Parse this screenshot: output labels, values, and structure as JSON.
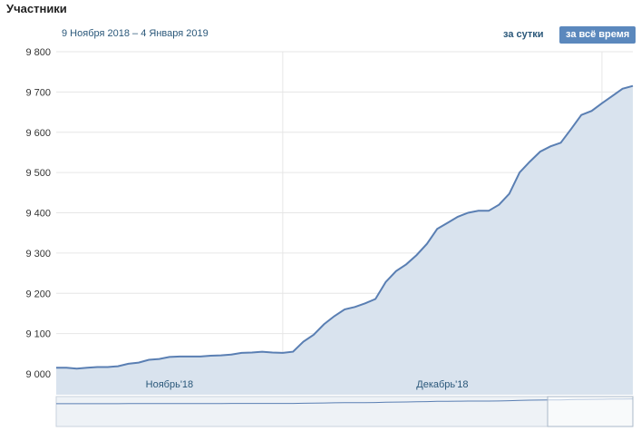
{
  "page": {
    "title": "Участники",
    "date_range": "9 Ноября 2018 – 4 Января 2019",
    "periods": {
      "day": "за сутки",
      "all": "за всё время"
    }
  },
  "colors": {
    "line": "#5a7fb3",
    "fill": "#d9e3ee",
    "grid": "#e6e6e6",
    "accent": "#5b88bd",
    "link": "#2b587a"
  },
  "chart_data": {
    "type": "area",
    "x": [
      "2018-11-09",
      "2018-11-10",
      "2018-11-11",
      "2018-11-12",
      "2018-11-13",
      "2018-11-14",
      "2018-11-15",
      "2018-11-16",
      "2018-11-17",
      "2018-11-18",
      "2018-11-19",
      "2018-11-20",
      "2018-11-21",
      "2018-11-22",
      "2018-11-23",
      "2018-11-24",
      "2018-11-25",
      "2018-11-26",
      "2018-11-27",
      "2018-11-28",
      "2018-11-29",
      "2018-11-30",
      "2018-12-01",
      "2018-12-02",
      "2018-12-03",
      "2018-12-04",
      "2018-12-05",
      "2018-12-06",
      "2018-12-07",
      "2018-12-08",
      "2018-12-09",
      "2018-12-10",
      "2018-12-11",
      "2018-12-12",
      "2018-12-13",
      "2018-12-14",
      "2018-12-15",
      "2018-12-16",
      "2018-12-17",
      "2018-12-18",
      "2018-12-19",
      "2018-12-20",
      "2018-12-21",
      "2018-12-22",
      "2018-12-23",
      "2018-12-24",
      "2018-12-25",
      "2018-12-26",
      "2018-12-27",
      "2018-12-28",
      "2018-12-29",
      "2018-12-30",
      "2018-12-31",
      "2019-01-01",
      "2019-01-02",
      "2019-01-03",
      "2019-01-04"
    ],
    "values": [
      9015,
      9015,
      9013,
      9015,
      9017,
      9017,
      9019,
      9025,
      9028,
      9035,
      9037,
      9042,
      9043,
      9043,
      9043,
      9045,
      9046,
      9048,
      9052,
      9053,
      9055,
      9053,
      9052,
      9055,
      9080,
      9097,
      9123,
      9143,
      9160,
      9166,
      9175,
      9186,
      9228,
      9255,
      9272,
      9295,
      9323,
      9360,
      9375,
      9390,
      9400,
      9405,
      9405,
      9420,
      9447,
      9500,
      9527,
      9552,
      9565,
      9574,
      9608,
      9643,
      9653,
      9672,
      9690,
      9708,
      9715
    ],
    "y_ticks": [
      "9 000",
      "9 100",
      "9 200",
      "9 300",
      "9 400",
      "9 500",
      "9 600",
      "9 700",
      "9 800"
    ],
    "ylim": [
      9000,
      9800
    ],
    "month_labels": [
      "Ноябрь'18",
      "Декабрь'18"
    ],
    "grid": true
  }
}
